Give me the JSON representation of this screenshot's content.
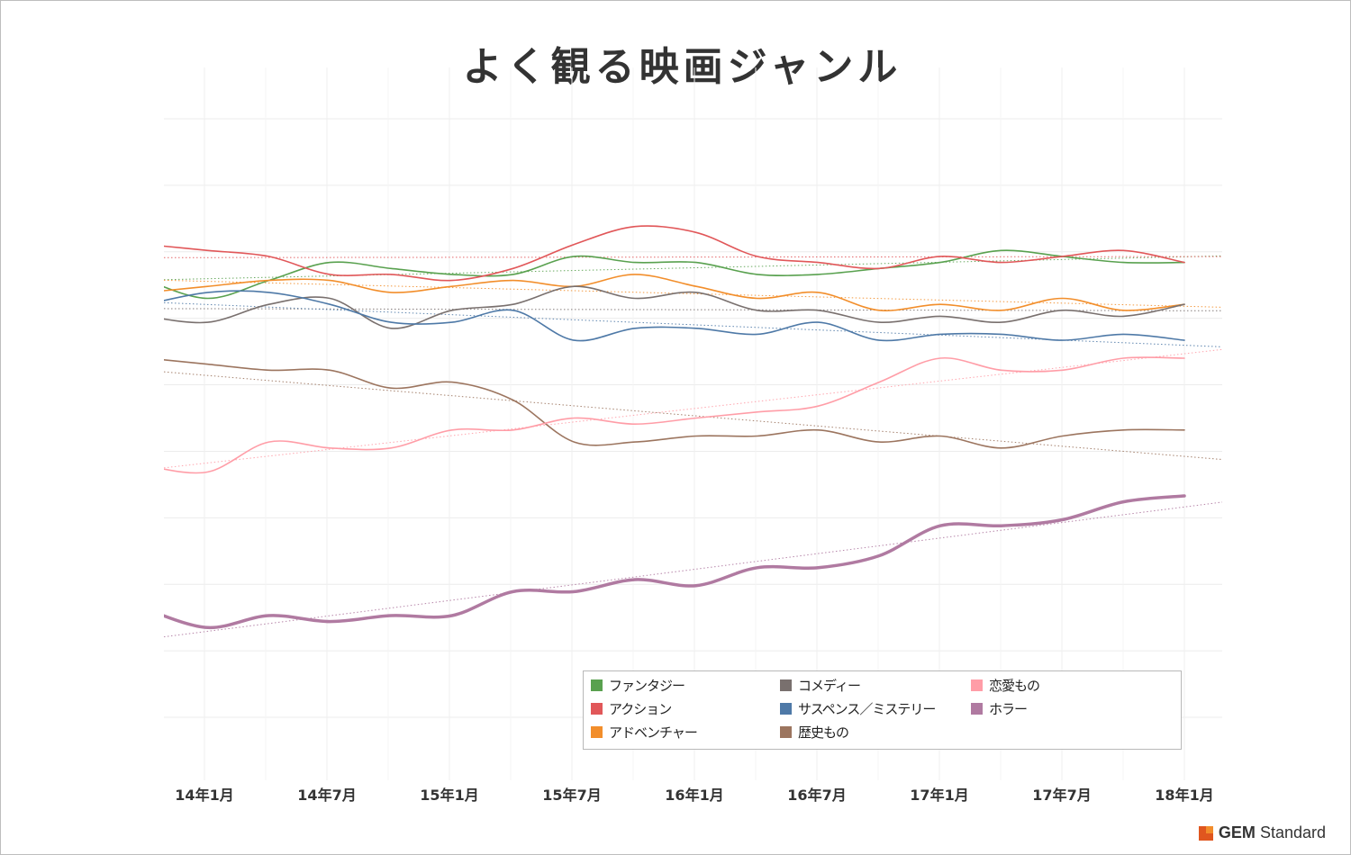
{
  "chart_data": {
    "type": "line",
    "title": "よく観る映画ジャンル",
    "xlabel": "",
    "ylabel": "",
    "x_ticks": [
      "14年1月",
      "14年7月",
      "15年1月",
      "15年7月",
      "16年1月",
      "16年7月",
      "17年1月",
      "17年7月",
      "18年1月"
    ],
    "x": [
      "13年11月",
      "14年1月",
      "14年4月",
      "14年7月",
      "14年10月",
      "15年1月",
      "15年4月",
      "15年7月",
      "15年10月",
      "16年1月",
      "16年4月",
      "16年7月",
      "16年10月",
      "17年1月",
      "17年4月",
      "17年7月",
      "17年10月",
      "18年1月"
    ],
    "ylim": [
      0,
      100
    ],
    "y_axis_labels": "hidden",
    "grid": true,
    "trendlines": true,
    "legend_position": "bottom-right",
    "series": [
      {
        "name": "ファンタジー",
        "color": "#59a14f",
        "values": [
          73,
          70,
          73,
          76,
          75,
          74,
          74,
          77,
          76,
          76,
          74,
          74,
          75,
          76,
          78,
          77,
          76,
          76
        ]
      },
      {
        "name": "アクション",
        "color": "#e15759",
        "values": [
          79,
          78,
          77,
          74,
          74,
          73,
          75,
          79,
          82,
          81,
          77,
          76,
          75,
          77,
          76,
          77,
          78,
          76
        ]
      },
      {
        "name": "アドベンチャー",
        "color": "#f28e2b",
        "values": [
          71,
          72,
          73,
          73,
          71,
          72,
          73,
          72,
          74,
          72,
          70,
          71,
          68,
          69,
          68,
          70,
          68,
          69
        ]
      },
      {
        "name": "コメディー",
        "color": "#79706e",
        "values": [
          67,
          66,
          69,
          70,
          65,
          68,
          69,
          72,
          70,
          71,
          68,
          68,
          66,
          67,
          66,
          68,
          67,
          69
        ]
      },
      {
        "name": "サスペンス／ミステリー",
        "color": "#4e79a7",
        "values": [
          69,
          71,
          71,
          69,
          66,
          66,
          68,
          63,
          65,
          65,
          64,
          66,
          63,
          64,
          64,
          63,
          64,
          63
        ]
      },
      {
        "name": "歴史もの",
        "color": "#9c755f",
        "values": [
          60,
          59,
          58,
          58,
          55,
          56,
          53,
          46,
          46,
          47,
          47,
          48,
          46,
          47,
          45,
          47,
          48,
          48
        ]
      },
      {
        "name": "恋愛もの",
        "color": "#ff9da7",
        "values": [
          42,
          41,
          46,
          45,
          45,
          48,
          48,
          50,
          49,
          50,
          51,
          52,
          56,
          60,
          58,
          58,
          60,
          60
        ]
      },
      {
        "name": "ホラー",
        "color": "#b07aa1",
        "values": [
          18,
          15,
          17,
          16,
          17,
          17,
          21,
          21,
          23,
          22,
          25,
          25,
          27,
          32,
          32,
          33,
          36,
          37
        ]
      }
    ]
  },
  "branding": {
    "strong": "GEM",
    "rest": "Standard"
  }
}
